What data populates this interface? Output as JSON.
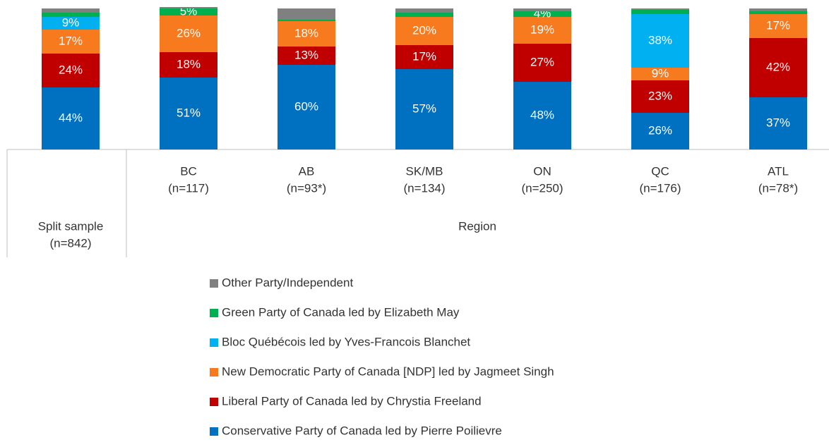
{
  "chart_data": {
    "type": "stacked_bar",
    "categories": [
      [
        "Split sample",
        "(n=842)"
      ],
      [
        "BC",
        "(n=117)"
      ],
      [
        "AB",
        "(n=93*)"
      ],
      [
        "SK/MB",
        "(n=134)"
      ],
      [
        "ON",
        "(n=250)"
      ],
      [
        "QC",
        "(n=176)"
      ],
      [
        "ATL",
        "(n=78*)"
      ]
    ],
    "group_label": "Region",
    "ylim": [
      0,
      100
    ],
    "series": [
      {
        "name": "Conservative Party of Canada led by Pierre Poilievre",
        "color": "#0070c0",
        "values": [
          44,
          51,
          60,
          57,
          48,
          26,
          37
        ],
        "value_labels": [
          "44%",
          "51%",
          "60%",
          "57%",
          "48%",
          "26%",
          "37%"
        ]
      },
      {
        "name": "Liberal Party of Canada led by Chrystia Freeland",
        "color": "#c00000",
        "values": [
          24,
          18,
          13,
          17,
          27,
          23,
          42
        ],
        "value_labels": [
          "24%",
          "18%",
          "13%",
          "17%",
          "27%",
          "23%",
          "42%"
        ]
      },
      {
        "name": "New Democratic Party of Canada [NDP] led by Jagmeet Singh",
        "color": "#f87a1e",
        "values": [
          17,
          26,
          18,
          20,
          19,
          9,
          17
        ],
        "value_labels": [
          "17%",
          "26%",
          "18%",
          "20%",
          "19%",
          "9%",
          "17%"
        ]
      },
      {
        "name": "Bloc Québécois led by Yves-Francois Blanchet",
        "color": "#00b0f0",
        "values": [
          9,
          0,
          0,
          0,
          0,
          38,
          0
        ],
        "value_labels": [
          "9%",
          null,
          null,
          null,
          null,
          "38%",
          null
        ]
      },
      {
        "name": "Green Party of Canada led by Elizabeth May",
        "color": "#00b050",
        "values": [
          3,
          5,
          1,
          3,
          4,
          3,
          2
        ],
        "value_labels": [
          null,
          "5%",
          null,
          null,
          "4%",
          null,
          null
        ]
      },
      {
        "name": "Other Party/Independent",
        "color": "#808080",
        "values": [
          3,
          1,
          8,
          3,
          2,
          1,
          2
        ],
        "value_labels": [
          null,
          null,
          null,
          null,
          null,
          null,
          null
        ]
      }
    ]
  }
}
